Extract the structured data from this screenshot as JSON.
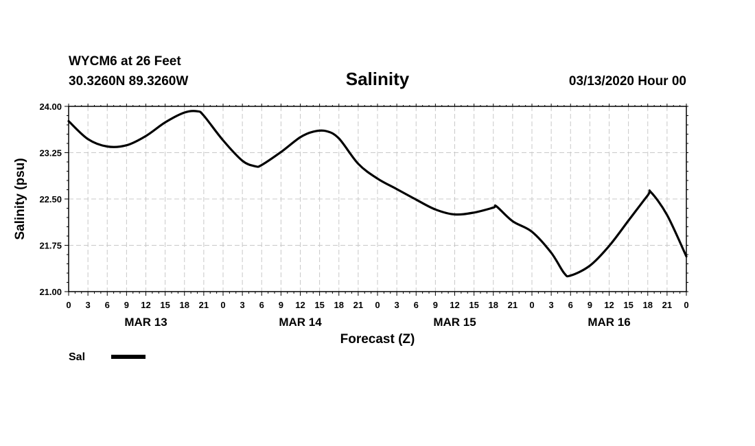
{
  "header": {
    "station": "WYCM6 at 26 Feet",
    "coords": "30.3260N 89.3260W",
    "title": "Salinity",
    "run": "03/13/2020 Hour 00"
  },
  "chart_data": {
    "type": "line",
    "title": "Salinity",
    "xlabel": "Forecast (Z)",
    "ylabel": "Salinity (psu)",
    "ylim": [
      21.0,
      24.0
    ],
    "xlim_hours": [
      0,
      96
    ],
    "y_ticks": [
      "21.00",
      "21.75",
      "22.50",
      "23.25",
      "24.00"
    ],
    "y_tick_values": [
      21.0,
      21.75,
      22.5,
      23.25,
      24.0
    ],
    "x_tick_labels": [
      "0",
      "3",
      "6",
      "9",
      "12",
      "15",
      "18",
      "21",
      "0",
      "3",
      "6",
      "9",
      "12",
      "15",
      "18",
      "21",
      "0",
      "3",
      "6",
      "9",
      "12",
      "15",
      "18",
      "21",
      "0",
      "3",
      "6",
      "9",
      "12",
      "15",
      "18",
      "21",
      "0"
    ],
    "date_labels": [
      {
        "label": "MAR 13",
        "center_hour": 12
      },
      {
        "label": "MAR 14",
        "center_hour": 36
      },
      {
        "label": "MAR 15",
        "center_hour": 60
      },
      {
        "label": "MAR 16",
        "center_hour": 84
      }
    ],
    "grid": true,
    "legend_position": "bottom-left",
    "series": [
      {
        "name": "Sal",
        "color": "#000000",
        "hours": [
          0,
          3,
          6,
          9,
          12,
          15,
          18,
          20,
          21,
          24,
          27,
          29,
          30,
          33,
          36,
          38,
          40,
          42,
          45,
          48,
          51,
          54,
          57,
          60,
          63,
          66,
          66.5,
          69,
          72,
          75,
          77,
          78,
          81,
          84,
          87,
          90,
          90.5,
          93,
          96
        ],
        "values": [
          23.76,
          23.47,
          23.35,
          23.37,
          23.52,
          23.74,
          23.9,
          23.92,
          23.85,
          23.45,
          23.12,
          23.03,
          23.05,
          23.26,
          23.5,
          23.59,
          23.6,
          23.48,
          23.07,
          22.83,
          22.66,
          22.49,
          22.33,
          22.25,
          22.28,
          22.36,
          22.38,
          22.14,
          21.97,
          21.63,
          21.3,
          21.26,
          21.42,
          21.74,
          22.15,
          22.56,
          22.61,
          22.24,
          21.57
        ]
      }
    ]
  },
  "legend": {
    "entries": [
      {
        "label": "Sal",
        "color": "#000000"
      }
    ]
  }
}
